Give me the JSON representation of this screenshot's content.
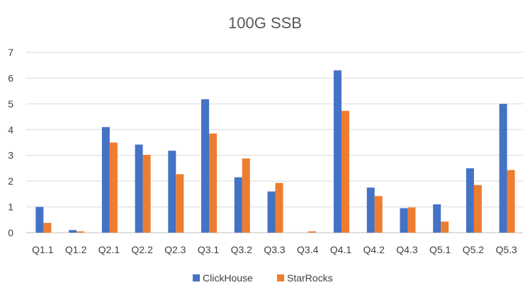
{
  "chart_data": {
    "type": "bar",
    "title": "100G SSB",
    "xlabel": "",
    "ylabel": "",
    "ylim": [
      0,
      7
    ],
    "yticks": [
      0,
      1,
      2,
      3,
      4,
      5,
      6,
      7
    ],
    "grid": true,
    "legend_position": "bottom",
    "categories": [
      "Q1.1",
      "Q1.2",
      "Q2.1",
      "Q2.2",
      "Q2.3",
      "Q3.1",
      "Q3.2",
      "Q3.3",
      "Q3.4",
      "Q4.1",
      "Q4.2",
      "Q4.3",
      "Q5.1",
      "Q5.2",
      "Q5.3"
    ],
    "series": [
      {
        "name": "ClickHouse",
        "color": "#4472c4",
        "values": [
          1.0,
          0.1,
          4.1,
          3.42,
          3.18,
          5.18,
          2.15,
          1.6,
          0.0,
          6.3,
          1.75,
          0.95,
          1.1,
          2.5,
          5.0
        ]
      },
      {
        "name": "StarRocks",
        "color": "#ed7d31",
        "values": [
          0.38,
          0.05,
          3.5,
          3.02,
          2.27,
          3.85,
          2.88,
          1.93,
          0.05,
          4.73,
          1.42,
          0.98,
          0.43,
          1.85,
          2.43
        ]
      }
    ]
  }
}
